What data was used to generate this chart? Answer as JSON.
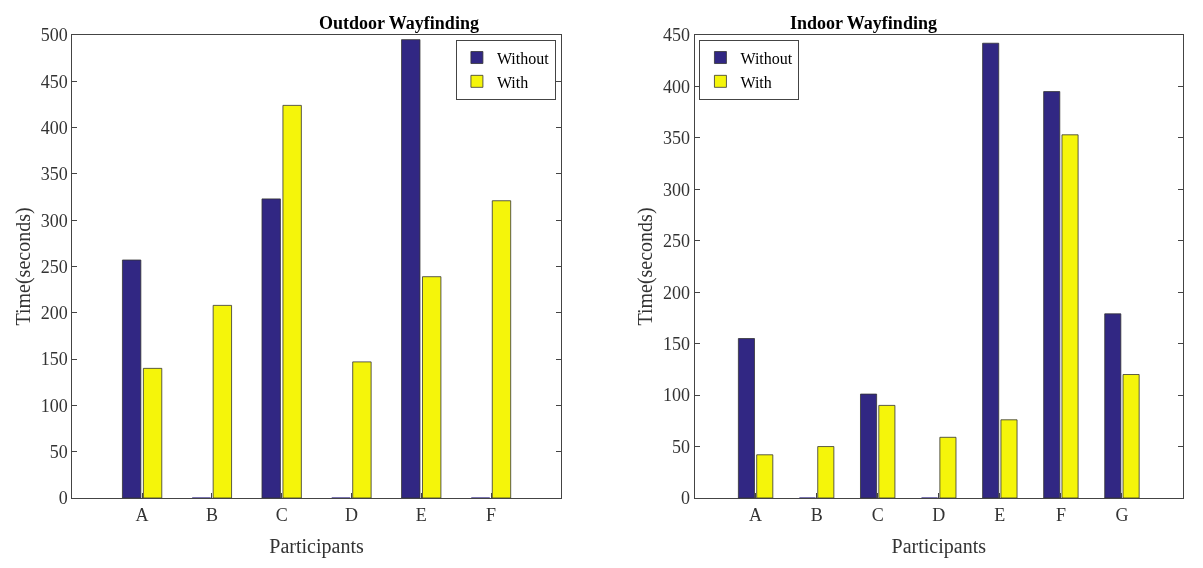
{
  "chart_data": [
    {
      "type": "bar",
      "title": "Outdoor Wayfinding",
      "xlabel": "Participants",
      "ylabel": "Time(seconds)",
      "categories": [
        "A",
        "B",
        "C",
        "D",
        "E",
        "F"
      ],
      "ylim": [
        0,
        500
      ],
      "yticks": [
        0,
        50,
        100,
        150,
        200,
        250,
        300,
        350,
        400,
        450,
        500
      ],
      "legend": "top right",
      "series": [
        {
          "name": "Without",
          "color": "#312783",
          "values": [
            257,
            0,
            323,
            0,
            495,
            0
          ]
        },
        {
          "name": "With",
          "color": "#f5f50a",
          "values": [
            140,
            208,
            424,
            147,
            239,
            321
          ]
        }
      ]
    },
    {
      "type": "bar",
      "title": "Indoor Wayfinding",
      "xlabel": "Participants",
      "ylabel": "Time(seconds)",
      "categories": [
        "A",
        "B",
        "C",
        "D",
        "E",
        "F",
        "G"
      ],
      "ylim": [
        0,
        450
      ],
      "yticks": [
        0,
        50,
        100,
        150,
        200,
        250,
        300,
        350,
        400,
        450
      ],
      "legend": "top left",
      "series": [
        {
          "name": "Without",
          "color": "#312783",
          "values": [
            155,
            0,
            101,
            0,
            442,
            395,
            179
          ]
        },
        {
          "name": "With",
          "color": "#f5f50a",
          "values": [
            42,
            50,
            90,
            59,
            76,
            353,
            120
          ]
        }
      ]
    }
  ]
}
